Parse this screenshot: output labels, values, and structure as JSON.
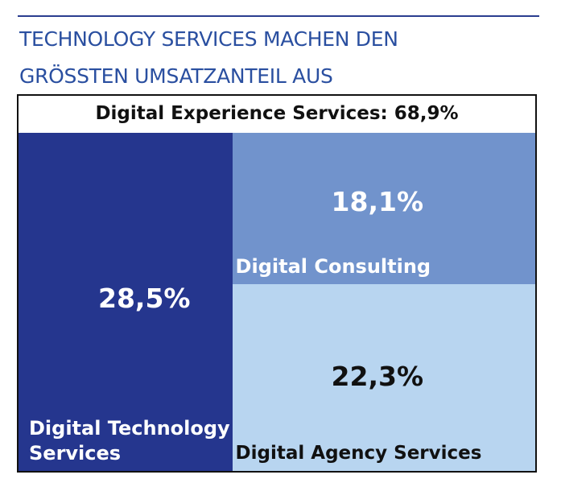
{
  "title_lines": [
    "TECHNOLOGY SERVICES MACHEN DEN",
    "GRÖSSTEN UMSATZANTEIL AUS"
  ],
  "colors": {
    "accent": "#2a4fa0",
    "technology": "#25368e",
    "consulting": "#7193cc",
    "agency": "#b8d5f0"
  },
  "chart_data": {
    "type": "treemap",
    "title": "TECHNOLOGY SERVICES MACHEN DEN GRÖSSTEN UMSATZANTEIL AUS",
    "group": {
      "label": "Digital Experience Services: 68,9%",
      "value": 68.9
    },
    "tiles": [
      {
        "name": "Digital Technology Services",
        "value": 28.5,
        "value_label": "28,5%",
        "color": "#25368e",
        "text_color": "#ffffff"
      },
      {
        "name": "Digital Consulting",
        "value": 18.1,
        "value_label": "18,1%",
        "color": "#7193cc",
        "text_color": "#ffffff"
      },
      {
        "name": "Digital Agency Services",
        "value": 22.3,
        "value_label": "22,3%",
        "color": "#b8d5f0",
        "text_color": "#111111"
      }
    ]
  }
}
